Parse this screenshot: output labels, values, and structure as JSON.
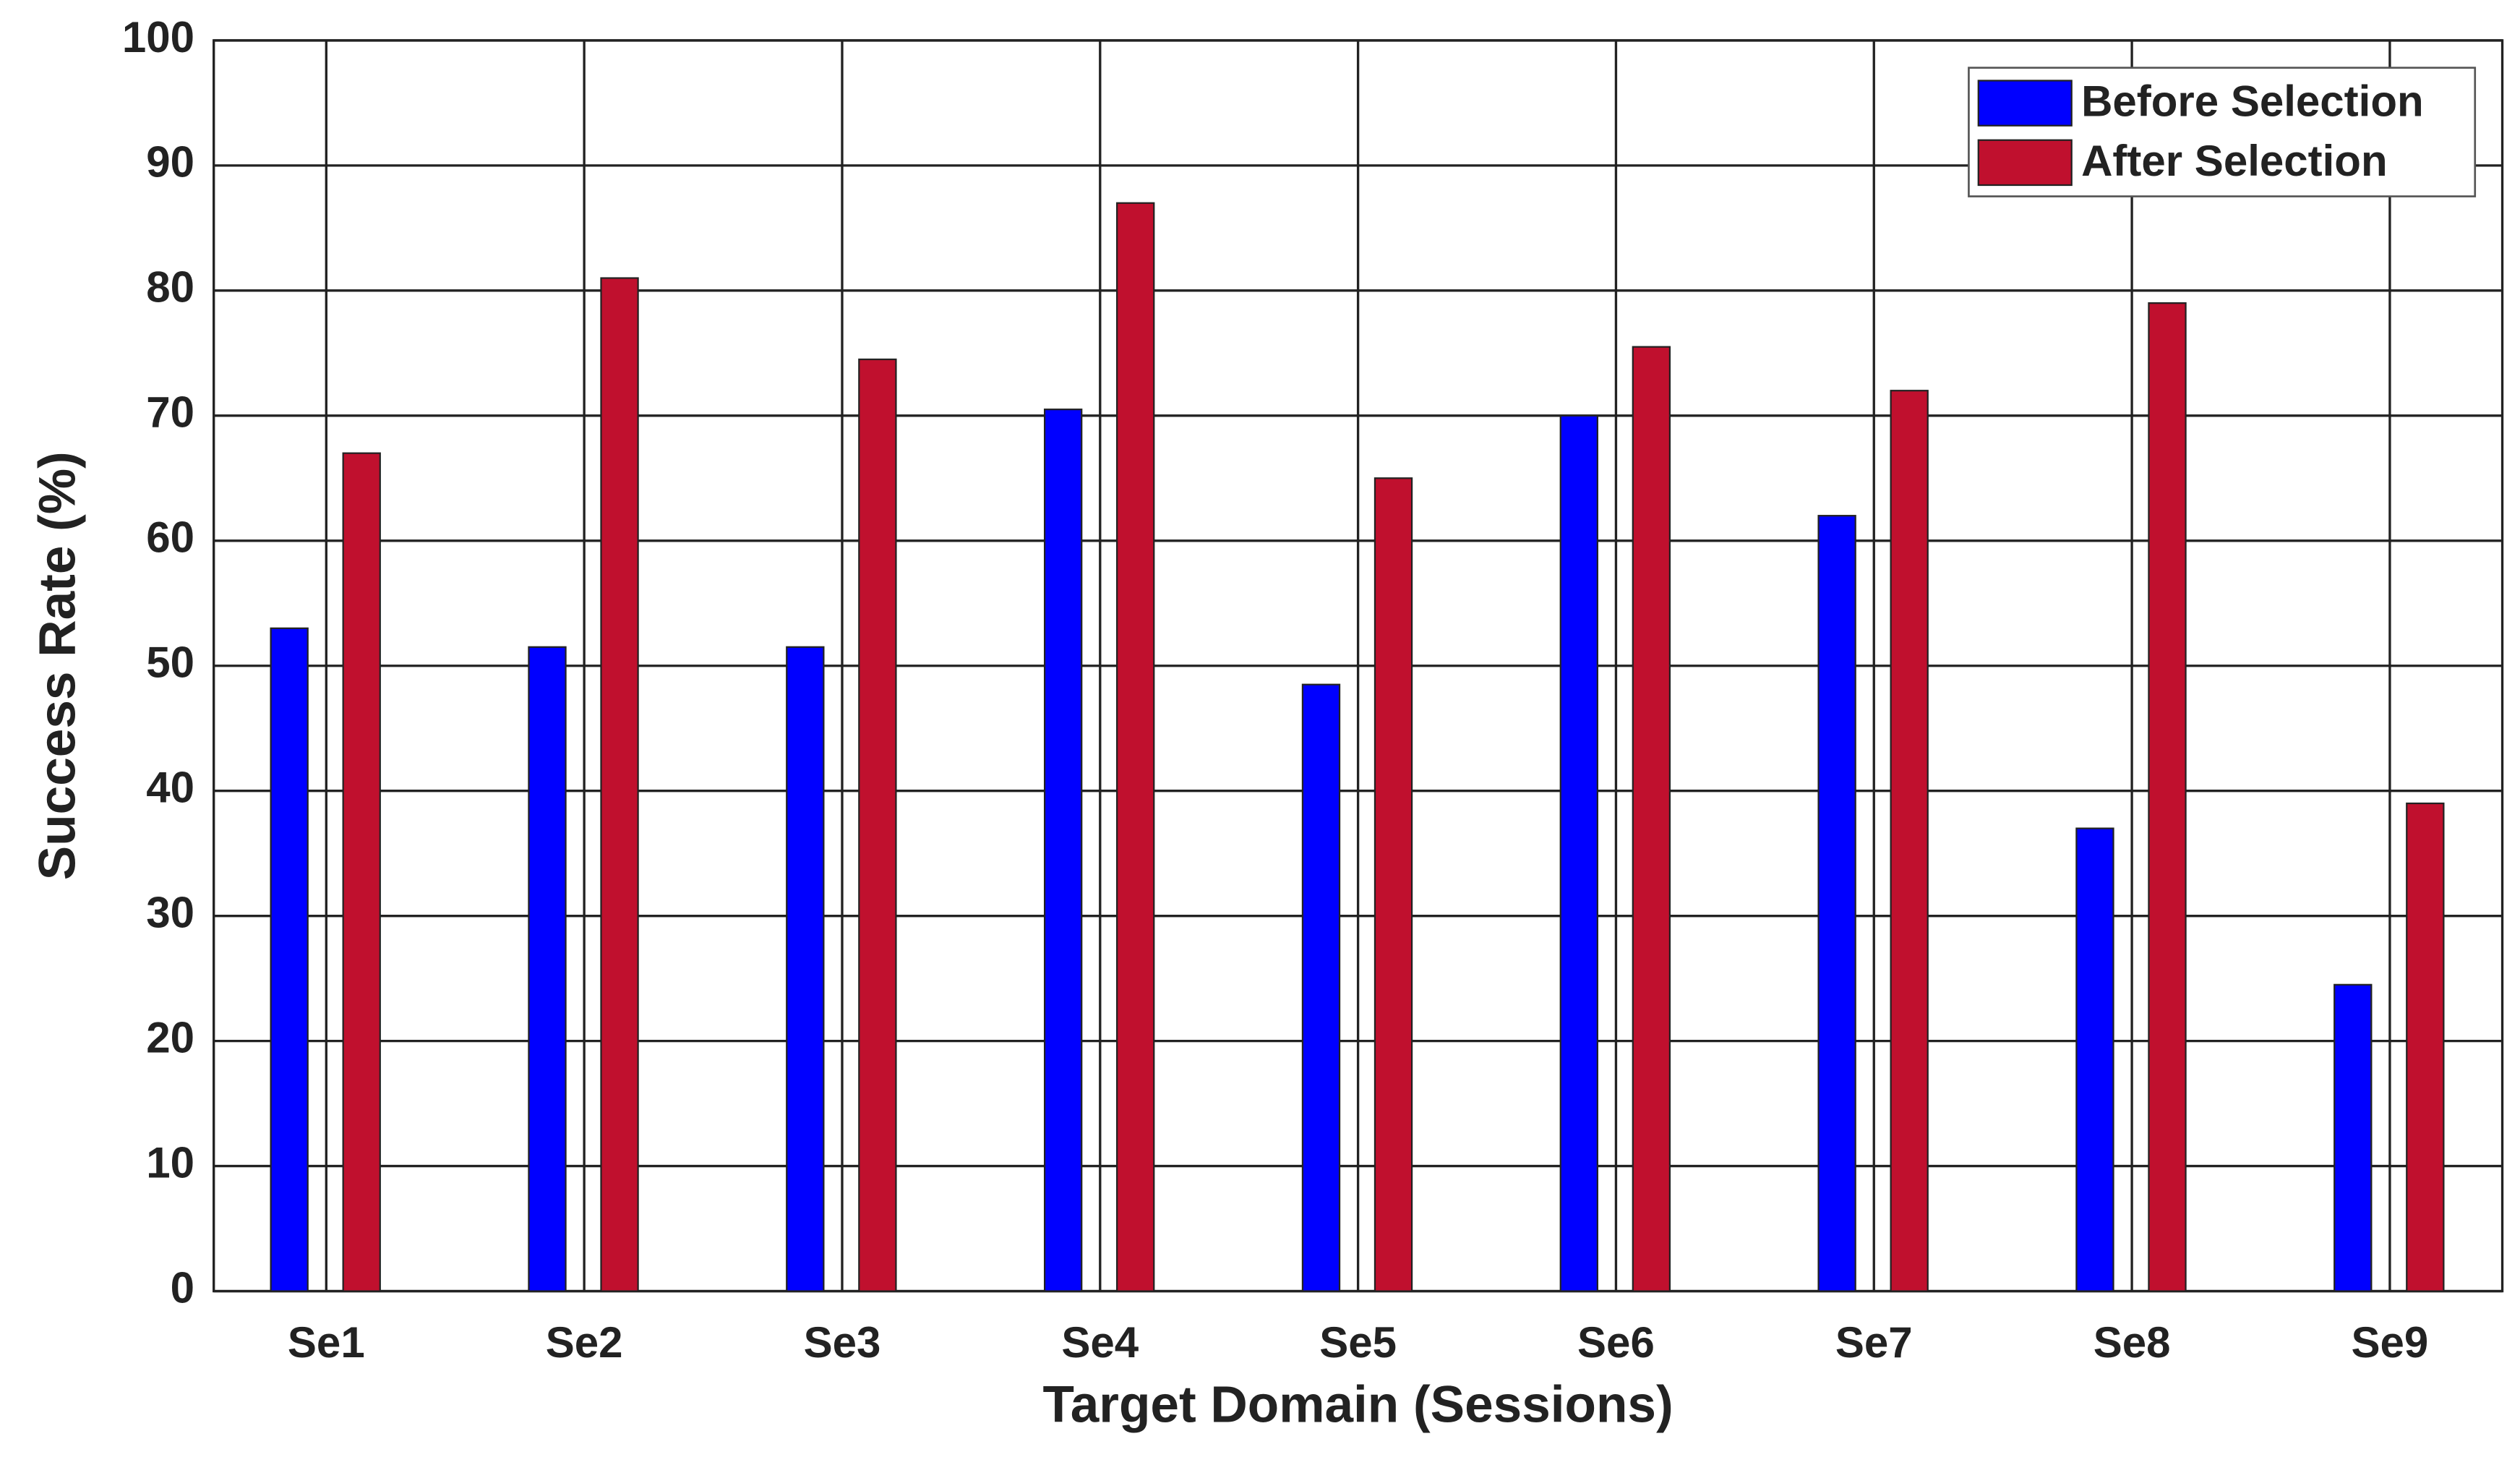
{
  "chart_data": {
    "type": "bar",
    "x_label": "Target Domain (Sessions)",
    "y_label": "Success Rate (%)",
    "categories": [
      "Se1",
      "Se2",
      "Se3",
      "Se4",
      "Se5",
      "Se6",
      "Se7",
      "Se8",
      "Se9"
    ],
    "series": [
      {
        "name": "Before Selection",
        "color": "#0000ff",
        "values": [
          53,
          51.5,
          51.5,
          70.5,
          48.5,
          70,
          62,
          37,
          24.5
        ]
      },
      {
        "name": "After Selection",
        "color": "#c0102e",
        "values": [
          67,
          81,
          74.5,
          87,
          65,
          75.5,
          72,
          79,
          39
        ]
      }
    ],
    "ylim": [
      0,
      100
    ],
    "yticks": [
      0,
      10,
      20,
      30,
      40,
      50,
      60,
      70,
      80,
      90,
      100
    ],
    "grid": true,
    "legend": "top-right"
  }
}
